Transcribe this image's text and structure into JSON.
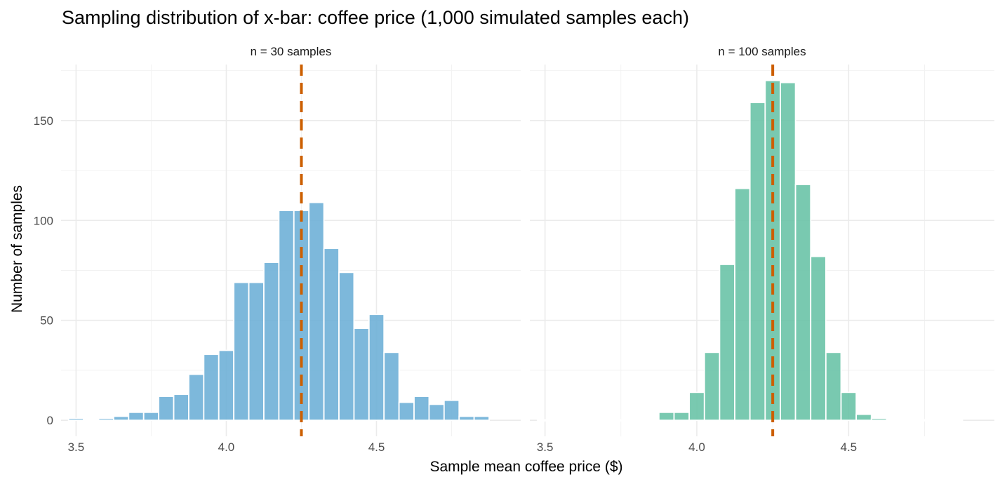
{
  "chart_data": {
    "type": "bar",
    "title": "Sampling distribution of x-bar: coffee price (1,000 simulated samples each)",
    "xlabel": "Sample mean coffee price ($)",
    "ylabel": "Number of samples",
    "xlim": [
      3.45,
      4.98
    ],
    "ylim": [
      -8,
      178
    ],
    "x_ticks": [
      3.5,
      4.0,
      4.5
    ],
    "x_tick_labels": [
      "3.5",
      "4.0",
      "4.5"
    ],
    "y_ticks": [
      0,
      50,
      100,
      150
    ],
    "y_tick_labels": [
      "0",
      "50",
      "100",
      "150"
    ],
    "grid": true,
    "reference_line": {
      "x": 4.25,
      "color": "#cc5f00",
      "style": "dashed"
    },
    "bin_width": 0.05,
    "panels": [
      {
        "label": "n = 30 samples",
        "color": "#6baed6",
        "bin_centers": [
          3.5,
          3.55,
          3.6,
          3.65,
          3.7,
          3.75,
          3.8,
          3.85,
          3.9,
          3.95,
          4.0,
          4.05,
          4.1,
          4.15,
          4.2,
          4.25,
          4.3,
          4.35,
          4.4,
          4.45,
          4.5,
          4.55,
          4.6,
          4.65,
          4.7,
          4.75,
          4.8,
          4.85
        ],
        "values": [
          1,
          0,
          1,
          2,
          4,
          4,
          12,
          13,
          23,
          33,
          35,
          69,
          69,
          79,
          105,
          105,
          109,
          86,
          74,
          46,
          53,
          34,
          9,
          12,
          8,
          10,
          2,
          2
        ]
      },
      {
        "label": "n = 100 samples",
        "color": "#66c2a5",
        "bin_centers": [
          3.5,
          3.55,
          3.6,
          3.65,
          3.7,
          3.75,
          3.8,
          3.85,
          3.9,
          3.95,
          4.0,
          4.05,
          4.1,
          4.15,
          4.2,
          4.25,
          4.3,
          4.35,
          4.4,
          4.45,
          4.5,
          4.55,
          4.6,
          4.65,
          4.7,
          4.75,
          4.8,
          4.85
        ],
        "values": [
          0,
          0,
          0,
          0,
          0,
          0,
          0,
          0,
          4,
          4,
          14,
          34,
          78,
          116,
          159,
          170,
          169,
          118,
          82,
          34,
          14,
          3,
          1,
          0,
          0,
          0,
          0,
          0
        ]
      }
    ]
  }
}
